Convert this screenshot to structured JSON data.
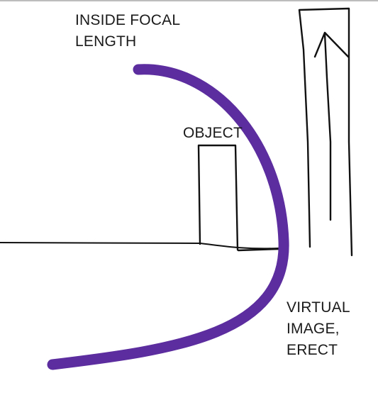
{
  "labels": {
    "focal": [
      "INSIDE FOCAL",
      "LENGTH"
    ],
    "object": "OBJECT",
    "image": [
      "VIRTUAL",
      "IMAGE,",
      "ERECT"
    ]
  },
  "colors": {
    "mirror": "#5b2d9e",
    "ink": "#111111",
    "background": "#ffffff",
    "top_rule": "#bdbdbd"
  },
  "icons": {
    "image_arrow": "up-arrow-icon"
  }
}
